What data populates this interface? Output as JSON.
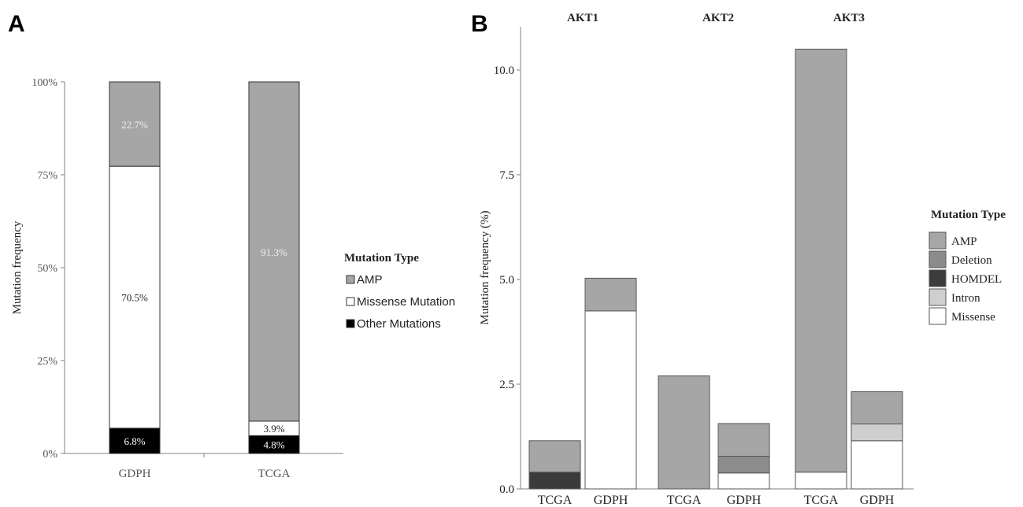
{
  "panel_labels": {
    "a": "A",
    "b": "B"
  },
  "colors": {
    "amp": "#a6a6a6",
    "deletion": "#8c8c8c",
    "homdel": "#3b3b3b",
    "intron": "#cfcfcf",
    "missense": "#ffffff",
    "other": "#000000",
    "axis": "#808080",
    "bar_stroke": "#555555"
  },
  "chart_data": [
    {
      "type": "bar",
      "stacked": true,
      "panel": "A",
      "ylabel": "Mutation frequency",
      "ylim": [
        0,
        100
      ],
      "yticks": [
        "0%",
        "25%",
        "50%",
        "75%",
        "100%"
      ],
      "categories": [
        "GDPH",
        "TCGA"
      ],
      "series": [
        {
          "name": "Other Mutations",
          "color_key": "other",
          "values": [
            6.8,
            4.8
          ],
          "labels": [
            "6.8%",
            "4.8%"
          ]
        },
        {
          "name": "Missense Mutation",
          "color_key": "missense",
          "values": [
            70.5,
            3.9
          ],
          "labels": [
            "70.5%",
            "3.9%"
          ]
        },
        {
          "name": "AMP",
          "color_key": "amp",
          "values": [
            22.7,
            91.3
          ],
          "labels": [
            "22.7%",
            "91.3%"
          ]
        }
      ],
      "legend": {
        "title": "Mutation Type",
        "entries": [
          {
            "label": "AMP",
            "color_key": "amp"
          },
          {
            "label": "Missense Mutation",
            "color_key": "missense"
          },
          {
            "label": "Other Mutations",
            "color_key": "other"
          }
        ]
      }
    },
    {
      "type": "bar",
      "stacked": true,
      "panel": "B",
      "ylabel": "Mutation frequency (%)",
      "ylim": [
        0,
        11
      ],
      "yticks": [
        "0.0",
        "2.5",
        "5.0",
        "7.5",
        "10.0"
      ],
      "groups": [
        "AKT1",
        "AKT2",
        "AKT3"
      ],
      "bars": [
        {
          "group": "AKT1",
          "label": "TCGA",
          "stack": [
            {
              "key": "homdel",
              "value": 0.4
            },
            {
              "key": "amp",
              "value": 0.75
            }
          ]
        },
        {
          "group": "AKT1",
          "label": "GDPH",
          "stack": [
            {
              "key": "missense",
              "value": 4.25
            },
            {
              "key": "amp",
              "value": 0.78
            }
          ]
        },
        {
          "group": "AKT2",
          "label": "TCGA",
          "stack": [
            {
              "key": "amp",
              "value": 2.7
            }
          ]
        },
        {
          "group": "AKT2",
          "label": "GDPH",
          "stack": [
            {
              "key": "missense",
              "value": 0.38
            },
            {
              "key": "deletion",
              "value": 0.4
            },
            {
              "key": "amp",
              "value": 0.78
            }
          ]
        },
        {
          "group": "AKT3",
          "label": "TCGA",
          "stack": [
            {
              "key": "missense",
              "value": 0.4
            },
            {
              "key": "amp",
              "value": 10.1
            }
          ]
        },
        {
          "group": "AKT3",
          "label": "GDPH",
          "stack": [
            {
              "key": "missense",
              "value": 1.15
            },
            {
              "key": "intron",
              "value": 0.4
            },
            {
              "key": "amp",
              "value": 0.77
            }
          ]
        }
      ],
      "legend": {
        "title": "Mutation Type",
        "entries": [
          {
            "label": "AMP",
            "color_key": "amp"
          },
          {
            "label": "Deletion",
            "color_key": "deletion"
          },
          {
            "label": "HOMDEL",
            "color_key": "homdel"
          },
          {
            "label": "Intron",
            "color_key": "intron"
          },
          {
            "label": "Missense",
            "color_key": "missense"
          }
        ]
      }
    }
  ]
}
